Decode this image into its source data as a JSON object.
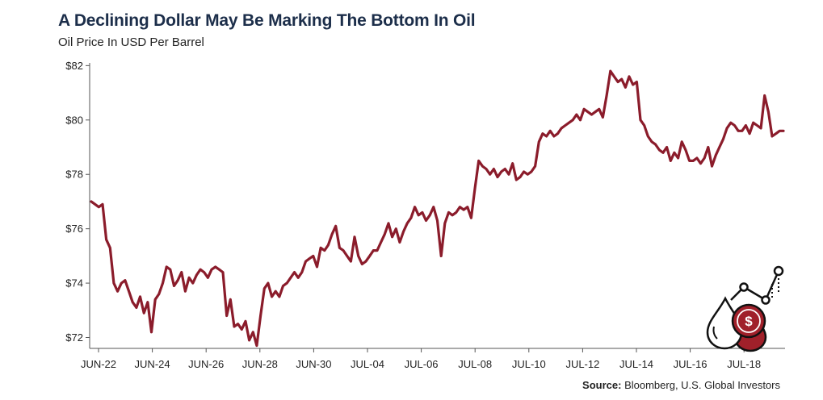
{
  "title": "A Declining Dollar May Be Marking The Bottom In Oil",
  "subtitle": "Oil Price In USD Per Barrel",
  "source_label": "Source:",
  "source_text": "Bloomberg, U.S. Global Investors",
  "colors": {
    "line": "#8b1c2b",
    "title": "#1c2e4a",
    "axis": "#555555",
    "icon_accent": "#a0202a"
  },
  "icon": "oil-drop-dollar-icon",
  "chart_data": {
    "type": "line",
    "title": "A Declining Dollar May Be Marking The Bottom In Oil",
    "subtitle": "Oil Price In USD Per Barrel",
    "xlabel": "",
    "ylabel": "",
    "ylim": [
      71.6,
      82.1
    ],
    "grid": false,
    "y_ticks": [
      {
        "value": 72,
        "label": "$72"
      },
      {
        "value": 74,
        "label": "$74"
      },
      {
        "value": 76,
        "label": "$76"
      },
      {
        "value": 78,
        "label": "$78"
      },
      {
        "value": 80,
        "label": "$80"
      },
      {
        "value": 82,
        "label": "$82"
      }
    ],
    "x_tick_labels": [
      "JUN-22",
      "JUN-24",
      "JUN-26",
      "JUN-28",
      "JUN-30",
      "JUL-04",
      "JUL-06",
      "JUL-08",
      "JUL-10",
      "JUL-12",
      "JUL-14",
      "JUL-16",
      "JUL-18"
    ],
    "series": [
      {
        "values": [
          77.0,
          76.9,
          76.8,
          76.9,
          75.6,
          75.3,
          74.0,
          73.7,
          74.0,
          74.1,
          73.7,
          73.3,
          73.1,
          73.5,
          72.9,
          73.3,
          72.2,
          73.4,
          73.6,
          74.0,
          74.6,
          74.5,
          73.9,
          74.1,
          74.4,
          73.7,
          74.2,
          74.0,
          74.3,
          74.5,
          74.4,
          74.2,
          74.5,
          74.6,
          74.5,
          74.4,
          72.8,
          73.4,
          72.4,
          72.5,
          72.3,
          72.6,
          71.9,
          72.2,
          71.7,
          72.8,
          73.8,
          74.0,
          73.5,
          73.7,
          73.5,
          73.9,
          74.0,
          74.2,
          74.4,
          74.2,
          74.4,
          74.8,
          74.9,
          75.0,
          74.6,
          75.3,
          75.2,
          75.4,
          75.8,
          76.1,
          75.3,
          75.2,
          75.0,
          74.8,
          75.7,
          75.0,
          74.7,
          74.8,
          75.0,
          75.2,
          75.2,
          75.5,
          75.8,
          76.2,
          75.7,
          76.0,
          75.5,
          75.9,
          76.2,
          76.4,
          76.8,
          76.5,
          76.6,
          76.3,
          76.5,
          76.8,
          76.3,
          75.0,
          76.2,
          76.6,
          76.5,
          76.6,
          76.8,
          76.7,
          76.8,
          76.4,
          77.5,
          78.5,
          78.3,
          78.2,
          78.0,
          78.2,
          77.9,
          78.1,
          78.2,
          78.0,
          78.4,
          77.8,
          77.9,
          78.1,
          78.0,
          78.1,
          78.3,
          79.2,
          79.5,
          79.4,
          79.6,
          79.4,
          79.5,
          79.7,
          79.8,
          79.9,
          80.0,
          80.2,
          80.0,
          80.4,
          80.3,
          80.2,
          80.3,
          80.4,
          80.1,
          80.9,
          81.8,
          81.6,
          81.4,
          81.5,
          81.2,
          81.6,
          81.3,
          81.4,
          80.0,
          79.8,
          79.4,
          79.2,
          79.1,
          78.9,
          78.8,
          79.0,
          78.5,
          78.8,
          78.6,
          79.2,
          78.9,
          78.5,
          78.5,
          78.6,
          78.4,
          78.6,
          79.0,
          78.3,
          78.7,
          79.0,
          79.3,
          79.7,
          79.9,
          79.8,
          79.6,
          79.6,
          79.8,
          79.5,
          79.9,
          79.8,
          79.7,
          80.9,
          80.3,
          79.4,
          79.5,
          79.6,
          79.6
        ]
      }
    ]
  }
}
